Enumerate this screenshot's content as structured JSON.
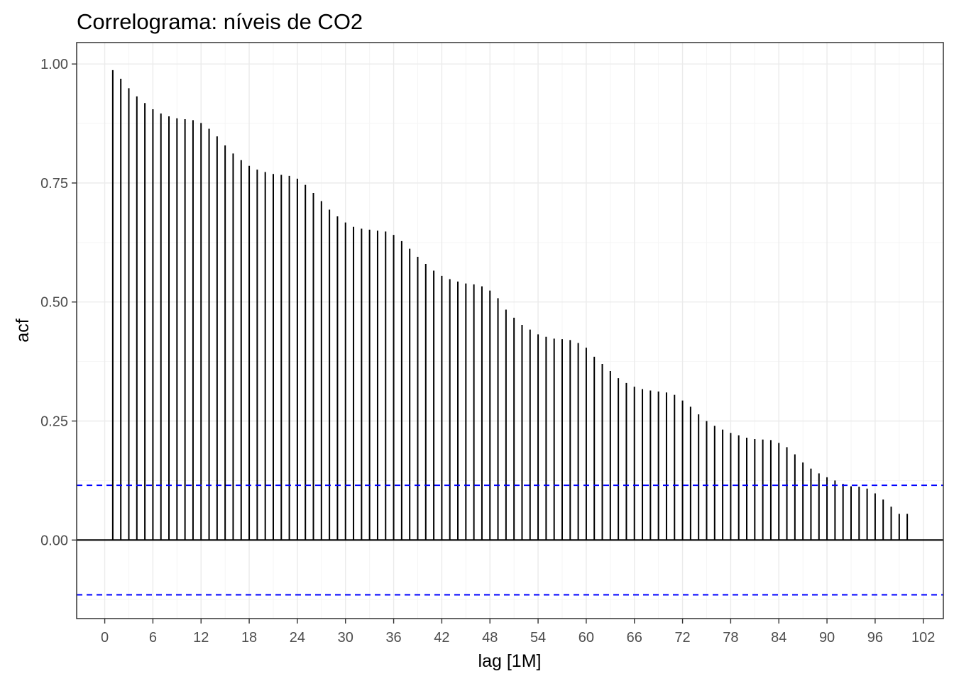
{
  "chart_data": {
    "type": "bar",
    "subtype": "correlogram",
    "title": "Correlograma: níveis de CO2",
    "xlabel": "lag [1M]",
    "ylabel": "acf",
    "xlim": [
      -3.5,
      104.5
    ],
    "ylim": [
      -0.165,
      1.045
    ],
    "xticks": [
      "0",
      "6",
      "12",
      "18",
      "24",
      "30",
      "36",
      "42",
      "48",
      "54",
      "60",
      "66",
      "72",
      "78",
      "84",
      "90",
      "96",
      "102"
    ],
    "yticks": [
      "0.00",
      "0.25",
      "0.50",
      "0.75",
      "1.00"
    ],
    "grid": true,
    "confidence_band": 0.115,
    "x": [
      1,
      2,
      3,
      4,
      5,
      6,
      7,
      8,
      9,
      10,
      11,
      12,
      13,
      14,
      15,
      16,
      17,
      18,
      19,
      20,
      21,
      22,
      23,
      24,
      25,
      26,
      27,
      28,
      29,
      30,
      31,
      32,
      33,
      34,
      35,
      36,
      37,
      38,
      39,
      40,
      41,
      42,
      43,
      44,
      45,
      46,
      47,
      48,
      49,
      50,
      51,
      52,
      53,
      54,
      55,
      56,
      57,
      58,
      59,
      60,
      61,
      62,
      63,
      64,
      65,
      66,
      67,
      68,
      69,
      70,
      71,
      72,
      73,
      74,
      75,
      76,
      77,
      78,
      79,
      80,
      81,
      82,
      83,
      84,
      85,
      86,
      87,
      88,
      89,
      90,
      91,
      92,
      93,
      94,
      95,
      96,
      97,
      98,
      99,
      100
    ],
    "values": [
      0.987,
      0.969,
      0.949,
      0.932,
      0.918,
      0.905,
      0.896,
      0.89,
      0.886,
      0.884,
      0.882,
      0.876,
      0.864,
      0.848,
      0.829,
      0.812,
      0.798,
      0.786,
      0.778,
      0.773,
      0.769,
      0.767,
      0.765,
      0.759,
      0.746,
      0.729,
      0.712,
      0.694,
      0.68,
      0.667,
      0.658,
      0.654,
      0.652,
      0.65,
      0.648,
      0.641,
      0.628,
      0.612,
      0.595,
      0.58,
      0.566,
      0.555,
      0.548,
      0.543,
      0.539,
      0.537,
      0.533,
      0.524,
      0.508,
      0.484,
      0.467,
      0.452,
      0.442,
      0.432,
      0.427,
      0.423,
      0.422,
      0.42,
      0.414,
      0.404,
      0.385,
      0.37,
      0.355,
      0.34,
      0.33,
      0.322,
      0.317,
      0.314,
      0.312,
      0.31,
      0.305,
      0.293,
      0.28,
      0.264,
      0.25,
      0.24,
      0.232,
      0.225,
      0.22,
      0.215,
      0.212,
      0.211,
      0.21,
      0.204,
      0.195,
      0.18,
      0.163,
      0.15,
      0.14,
      0.132,
      0.125,
      0.118,
      0.113,
      0.112,
      0.108,
      0.098,
      0.085,
      0.07,
      0.055,
      0.055
    ]
  },
  "colors": {
    "bars": "#000000",
    "confidence": "#0000ff",
    "grid_major": "#ebebeb",
    "grid_minor": "#f5f5f5",
    "panel_border": "#333333",
    "tick_label": "#4d4d4d"
  }
}
